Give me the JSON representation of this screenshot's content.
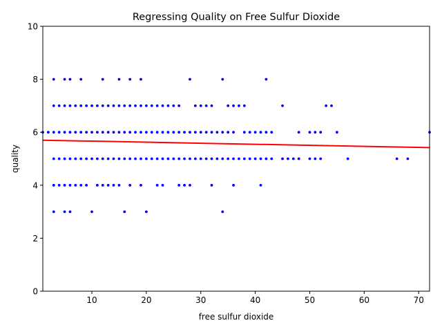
{
  "chart_data": {
    "type": "scatter",
    "title": "Regressing Quality on Free Sulfur Dioxide",
    "xlabel": "free sulfur dioxide",
    "ylabel": "quality",
    "xlim": [
      1,
      72
    ],
    "ylim": [
      0,
      10
    ],
    "xticks": [
      "10",
      "20",
      "30",
      "40",
      "50",
      "60",
      "70"
    ],
    "yticks": [
      "0",
      "2",
      "4",
      "6",
      "8",
      "10"
    ],
    "grid": false,
    "legend": "none",
    "colors": {
      "points": "#0000ff",
      "line": "#ff0000"
    },
    "points": {
      "3": [
        3,
        4,
        5,
        6,
        7,
        8
      ],
      "4": [
        4,
        5,
        6,
        7
      ],
      "5": [
        3,
        4,
        5,
        6,
        7,
        8
      ],
      "6": [
        3,
        4,
        5,
        6,
        7,
        8
      ],
      "7": [
        4,
        5,
        6,
        7
      ],
      "8": [
        4,
        5,
        6,
        7,
        8
      ],
      "9": [
        4,
        5,
        6,
        7
      ],
      "10": [
        3,
        5,
        6,
        7
      ],
      "11": [
        4,
        5,
        6,
        7
      ],
      "12": [
        4,
        5,
        6,
        7,
        8
      ],
      "13": [
        4,
        5,
        6,
        7
      ],
      "14": [
        4,
        5,
        6,
        7
      ],
      "15": [
        4,
        5,
        6,
        7,
        8
      ],
      "16": [
        3,
        5,
        6,
        7
      ],
      "17": [
        4,
        5,
        6,
        7,
        8
      ],
      "18": [
        5,
        6,
        7
      ],
      "19": [
        4,
        5,
        6,
        7,
        8
      ],
      "20": [
        3,
        5,
        6,
        7
      ],
      "21": [
        5,
        6,
        7
      ],
      "22": [
        4,
        5,
        6,
        7
      ],
      "23": [
        4,
        5,
        6,
        7
      ],
      "24": [
        5,
        6,
        7
      ],
      "25": [
        5,
        6,
        7
      ],
      "26": [
        4,
        5,
        6,
        7
      ],
      "27": [
        4,
        5,
        6
      ],
      "28": [
        4,
        5,
        6,
        8
      ],
      "29": [
        5,
        6,
        7
      ],
      "30": [
        5,
        6,
        7
      ],
      "31": [
        5,
        6,
        7
      ],
      "32": [
        4,
        5,
        6,
        7
      ],
      "33": [
        5,
        6
      ],
      "34": [
        3,
        5,
        6,
        8
      ],
      "35": [
        5,
        6,
        7
      ],
      "36": [
        4,
        5,
        6,
        7
      ],
      "37": [
        5,
        7
      ],
      "38": [
        5,
        6,
        7
      ],
      "39": [
        5,
        6
      ],
      "40": [
        5,
        6
      ],
      "41": [
        4,
        5,
        6
      ],
      "42": [
        5,
        6,
        8
      ],
      "43": [
        5,
        6
      ],
      "45": [
        5,
        7
      ],
      "46": [
        5
      ],
      "47": [
        5
      ],
      "48": [
        5,
        6
      ],
      "50": [
        5,
        6
      ],
      "51": [
        5,
        6
      ],
      "52": [
        5,
        6
      ],
      "53": [
        7
      ],
      "54": [
        7
      ],
      "55": [
        6
      ],
      "57": [
        5
      ],
      "66": [
        5
      ],
      "68": [
        5
      ],
      "72": [
        6
      ],
      "1": [
        6
      ],
      "2": [
        6
      ]
    },
    "regression": {
      "x": [
        1,
        72
      ],
      "y": [
        5.7,
        5.42
      ]
    }
  }
}
